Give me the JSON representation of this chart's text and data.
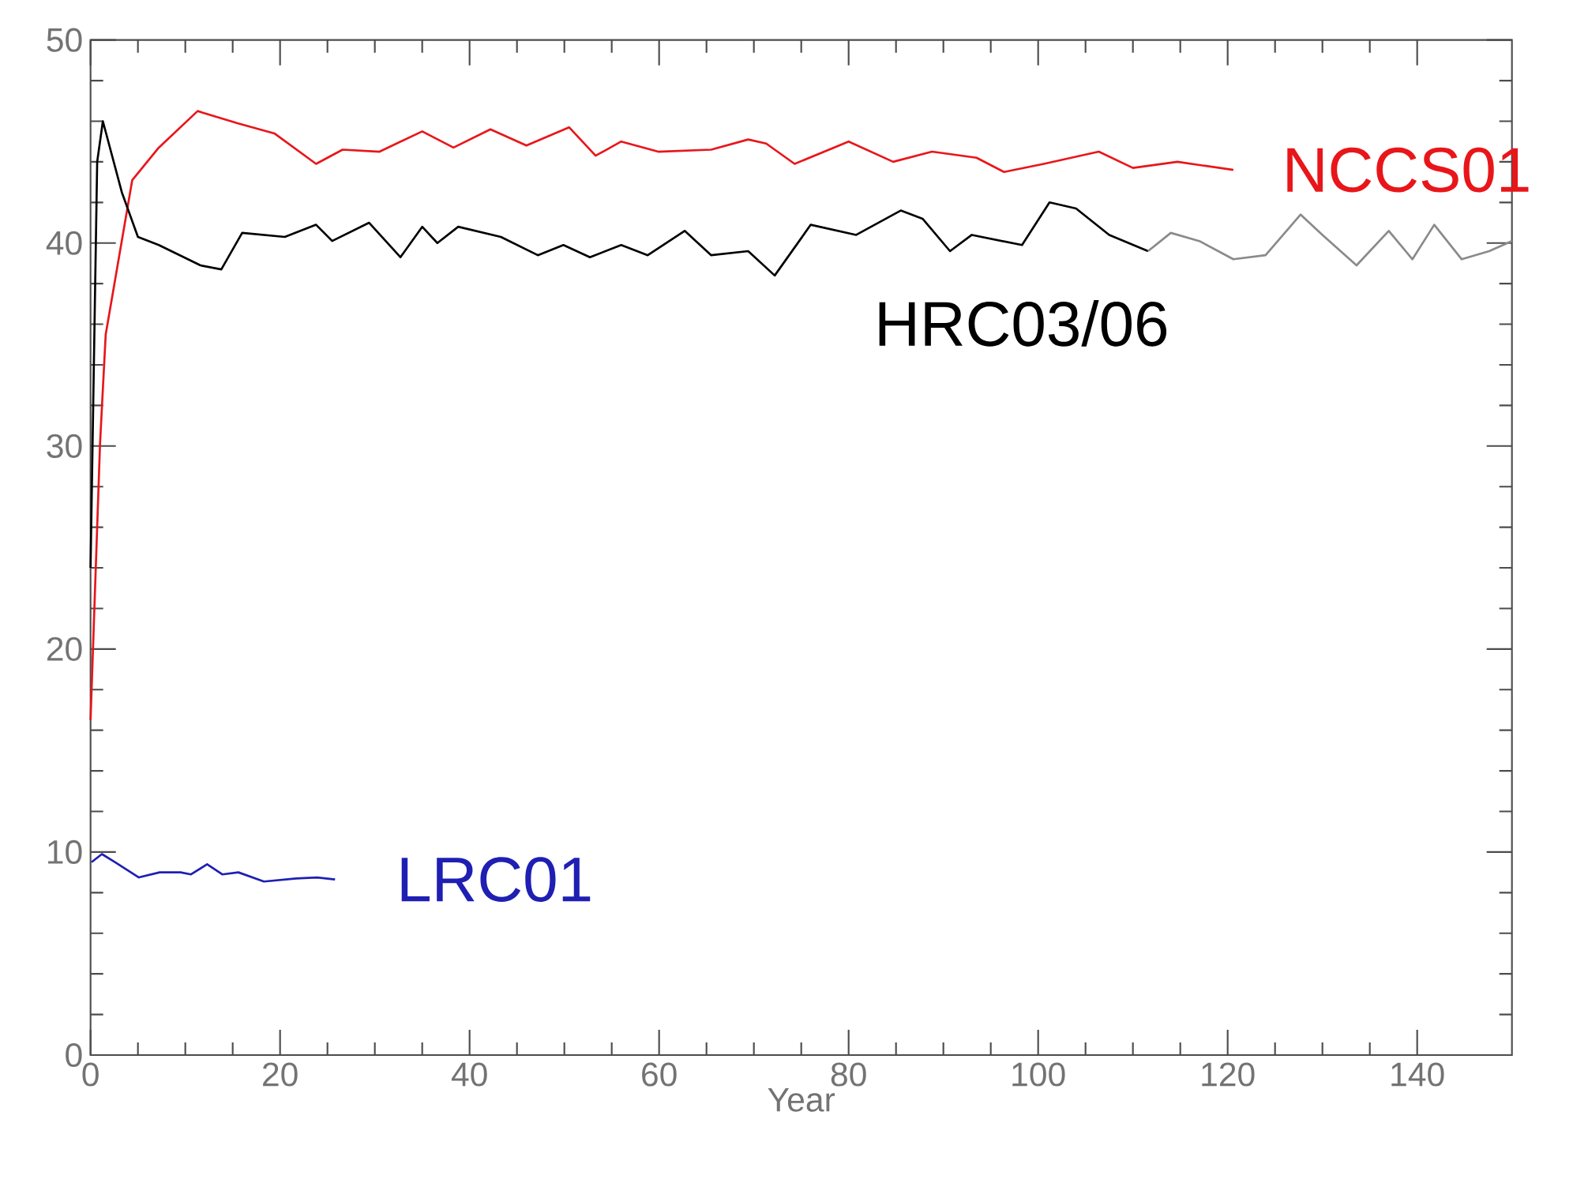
{
  "chart_data": {
    "type": "line",
    "xlabel": "Year",
    "xlim": [
      0,
      150
    ],
    "ylim": [
      0,
      50
    ],
    "xticks": [
      0,
      20,
      40,
      60,
      80,
      100,
      120,
      140
    ],
    "yticks": [
      0,
      10,
      20,
      30,
      40,
      50
    ],
    "series": [
      {
        "name": "NCCS01",
        "color": "#e8161a",
        "x": [
          0,
          1.0,
          1.6,
          4.4,
          7.2,
          11.3,
          15.5,
          19.4,
          23.8,
          26.6,
          30.5,
          35,
          38.3,
          42.2,
          46,
          50.5,
          53.3,
          56,
          59.9,
          65.5,
          69.4,
          71.3,
          74.3,
          80,
          84.7,
          88.8,
          93.5,
          96.4,
          100.6,
          106.4,
          110,
          114.7,
          120.6
        ],
        "values": [
          16.5,
          30.1,
          35.5,
          43.1,
          44.7,
          46.5,
          45.9,
          45.4,
          43.9,
          44.6,
          44.5,
          45.5,
          44.7,
          45.6,
          44.8,
          45.7,
          44.3,
          45.0,
          44.5,
          44.6,
          45.1,
          44.9,
          43.9,
          45.0,
          44.0,
          44.5,
          44.2,
          43.5,
          43.9,
          44.5,
          43.7,
          44.0,
          43.6
        ]
      },
      {
        "name": "HRC03/06",
        "color": "#000000",
        "x": [
          0,
          0.7,
          1.3,
          3.3,
          5,
          7.2,
          11.6,
          13.8,
          16,
          20.5,
          23.8,
          25.5,
          29.4,
          32.7,
          35,
          36.6,
          38.8,
          43.3,
          47.2,
          49.9,
          52.7,
          56,
          58.8,
          62.7,
          65.5,
          69.4,
          72.2,
          76,
          80.8,
          85.5,
          87.8,
          90.7,
          93,
          98.3,
          101.2,
          104,
          107.5,
          111.6
        ],
        "values": [
          24,
          44,
          46.0,
          42.5,
          40.3,
          39.9,
          38.9,
          38.7,
          40.5,
          40.3,
          40.9,
          40.1,
          41.0,
          39.3,
          40.8,
          40.0,
          40.8,
          40.3,
          39.4,
          39.9,
          39.3,
          39.9,
          39.4,
          40.6,
          39.4,
          39.6,
          38.4,
          40.9,
          40.4,
          41.6,
          41.2,
          39.6,
          40.4,
          39.9,
          42.0,
          41.7,
          40.4,
          39.6
        ]
      },
      {
        "color": "#8a8a8a",
        "x": [
          111.6,
          114,
          117,
          120.6,
          124,
          127.7,
          130,
          133.6,
          137,
          139.5,
          141.8,
          144.7,
          147.6,
          150
        ],
        "values": [
          39.6,
          40.5,
          40.1,
          39.2,
          39.4,
          41.4,
          40.4,
          38.9,
          40.6,
          39.2,
          40.9,
          39.2,
          39.6,
          40.1
        ]
      },
      {
        "name": "LRC01",
        "color": "#1f1fb4",
        "x": [
          0.1,
          1.2,
          2.6,
          5.1,
          7.3,
          9.5,
          10.6,
          12.3,
          13.9,
          15.6,
          18.3,
          21.7,
          23.9,
          25.8
        ],
        "values": [
          9.5,
          9.9,
          9.5,
          8.75,
          9.0,
          9.0,
          8.9,
          9.4,
          8.9,
          9.0,
          8.55,
          8.7,
          8.75,
          8.65
        ]
      }
    ]
  }
}
